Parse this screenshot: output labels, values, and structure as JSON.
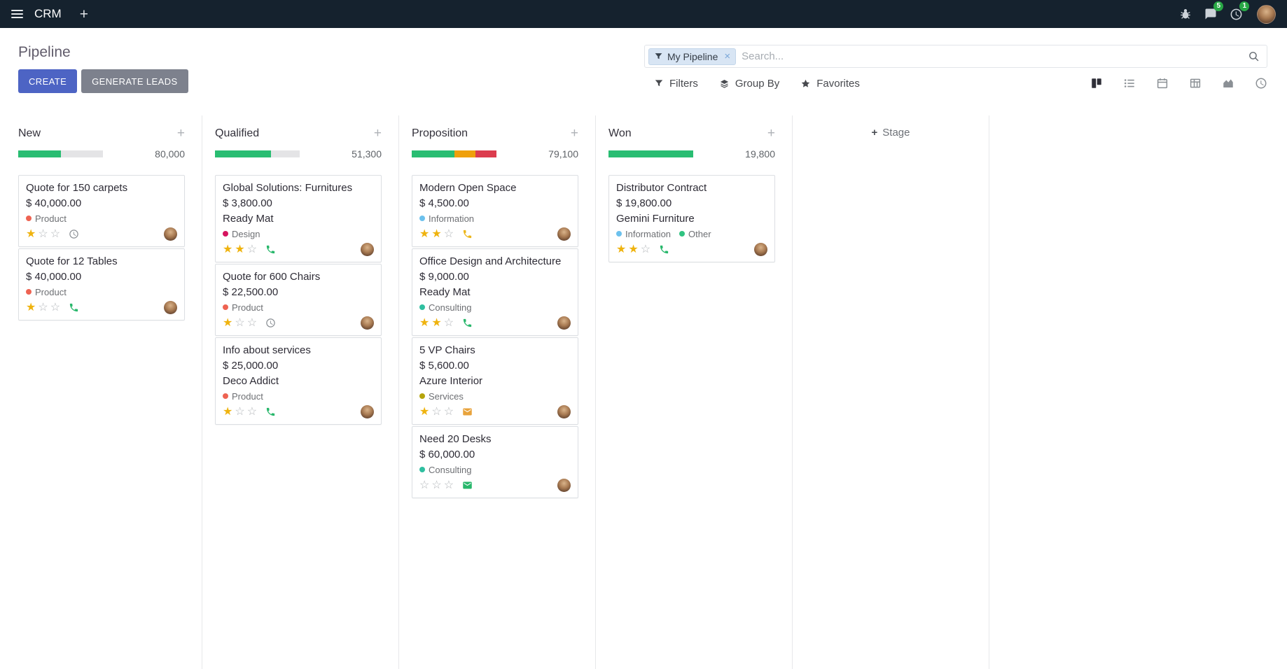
{
  "colors": {
    "accent": "#4d64c4",
    "topbar_bg": "#15222e",
    "star_gold": "#efb30e",
    "badge_green": "#28a745",
    "progress_green": "#29bd72",
    "progress_yellow": "#efa00b",
    "progress_red": "#dc3c4e",
    "progress_muted": "#e4e4e6"
  },
  "topbar": {
    "brand": "CRM",
    "messages_badge": "5",
    "activities_badge": "1",
    "icons": [
      "apps-menu",
      "plus",
      "bug",
      "messages",
      "activities",
      "user-avatar"
    ]
  },
  "control_panel": {
    "title": "Pipeline",
    "buttons": {
      "create": "CREATE",
      "generate_leads": "GENERATE LEADS"
    },
    "search": {
      "facet": "My Pipeline",
      "placeholder": "Search...",
      "icons": [
        "filter",
        "close",
        "magnifier"
      ]
    },
    "filters": "Filters",
    "group_by": "Group By",
    "favorites": "Favorites",
    "view_switcher": {
      "active": "kanban",
      "views": [
        "kanban",
        "list",
        "calendar",
        "pivot",
        "graph",
        "activity"
      ]
    }
  },
  "kanban": {
    "add_stage": "Stage",
    "columns": [
      {
        "name": "New",
        "total": "80,000",
        "progress": [
          {
            "color_key": "green",
            "pct": 50
          },
          {
            "color_key": "muted",
            "pct": 50
          }
        ],
        "cards": [
          {
            "title": "Quote for 150 carpets",
            "amount": "$ 40,000.00",
            "partner": null,
            "tags": [
              {
                "label": "Product",
                "color": "#ee6352"
              }
            ],
            "stars": 1,
            "activity": {
              "icon": "clock",
              "color": "#8a8f94"
            }
          },
          {
            "title": "Quote for 12 Tables",
            "amount": "$ 40,000.00",
            "partner": null,
            "tags": [
              {
                "label": "Product",
                "color": "#ee6352"
              }
            ],
            "stars": 1,
            "activity": {
              "icon": "phone",
              "color": "#28b76b"
            }
          }
        ]
      },
      {
        "name": "Qualified",
        "total": "51,300",
        "progress": [
          {
            "color_key": "green",
            "pct": 66
          },
          {
            "color_key": "muted",
            "pct": 34
          }
        ],
        "cards": [
          {
            "title": "Global Solutions: Furnitures",
            "amount": "$ 3,800.00",
            "partner": "Ready Mat",
            "tags": [
              {
                "label": "Design",
                "color": "#d6145f"
              }
            ],
            "stars": 2,
            "activity": {
              "icon": "phone",
              "color": "#28b76b"
            }
          },
          {
            "title": "Quote for 600 Chairs",
            "amount": "$ 22,500.00",
            "partner": null,
            "tags": [
              {
                "label": "Product",
                "color": "#ee6352"
              }
            ],
            "stars": 1,
            "activity": {
              "icon": "clock",
              "color": "#8a8f94"
            }
          },
          {
            "title": "Info about services",
            "amount": "$ 25,000.00",
            "partner": "Deco Addict",
            "tags": [
              {
                "label": "Product",
                "color": "#ee6352"
              }
            ],
            "stars": 1,
            "activity": {
              "icon": "phone",
              "color": "#28b76b"
            }
          }
        ]
      },
      {
        "name": "Proposition",
        "total": "79,100",
        "progress": [
          {
            "color_key": "green",
            "pct": 50
          },
          {
            "color_key": "yellow",
            "pct": 25
          },
          {
            "color_key": "red",
            "pct": 25
          }
        ],
        "cards": [
          {
            "title": "Modern Open Space",
            "amount": "$ 4,500.00",
            "partner": null,
            "tags": [
              {
                "label": "Information",
                "color": "#6cc1ed"
              }
            ],
            "stars": 2,
            "activity": {
              "icon": "phone",
              "color": "#edb71c"
            }
          },
          {
            "title": "Office Design and Architecture",
            "amount": "$ 9,000.00",
            "partner": "Ready Mat",
            "tags": [
              {
                "label": "Consulting",
                "color": "#2fbfa0"
              }
            ],
            "stars": 2,
            "activity": {
              "icon": "phone",
              "color": "#28b76b"
            }
          },
          {
            "title": "5 VP Chairs",
            "amount": "$ 5,600.00",
            "partner": "Azure Interior",
            "tags": [
              {
                "label": "Services",
                "color": "#b5a40c"
              }
            ],
            "stars": 1,
            "activity": {
              "icon": "envelope",
              "color": "#e8a33c"
            }
          },
          {
            "title": "Need 20 Desks",
            "amount": "$ 60,000.00",
            "partner": null,
            "tags": [
              {
                "label": "Consulting",
                "color": "#2fbfa0"
              }
            ],
            "stars": 0,
            "activity": {
              "icon": "envelope",
              "color": "#28b76b"
            }
          }
        ]
      },
      {
        "name": "Won",
        "total": "19,800",
        "progress": [
          {
            "color_key": "green",
            "pct": 100
          }
        ],
        "cards": [
          {
            "title": "Distributor Contract",
            "amount": "$ 19,800.00",
            "partner": "Gemini Furniture",
            "tags": [
              {
                "label": "Information",
                "color": "#6cc1ed"
              },
              {
                "label": "Other",
                "color": "#30c381"
              }
            ],
            "stars": 2,
            "activity": {
              "icon": "phone",
              "color": "#28b76b"
            }
          }
        ]
      }
    ]
  }
}
